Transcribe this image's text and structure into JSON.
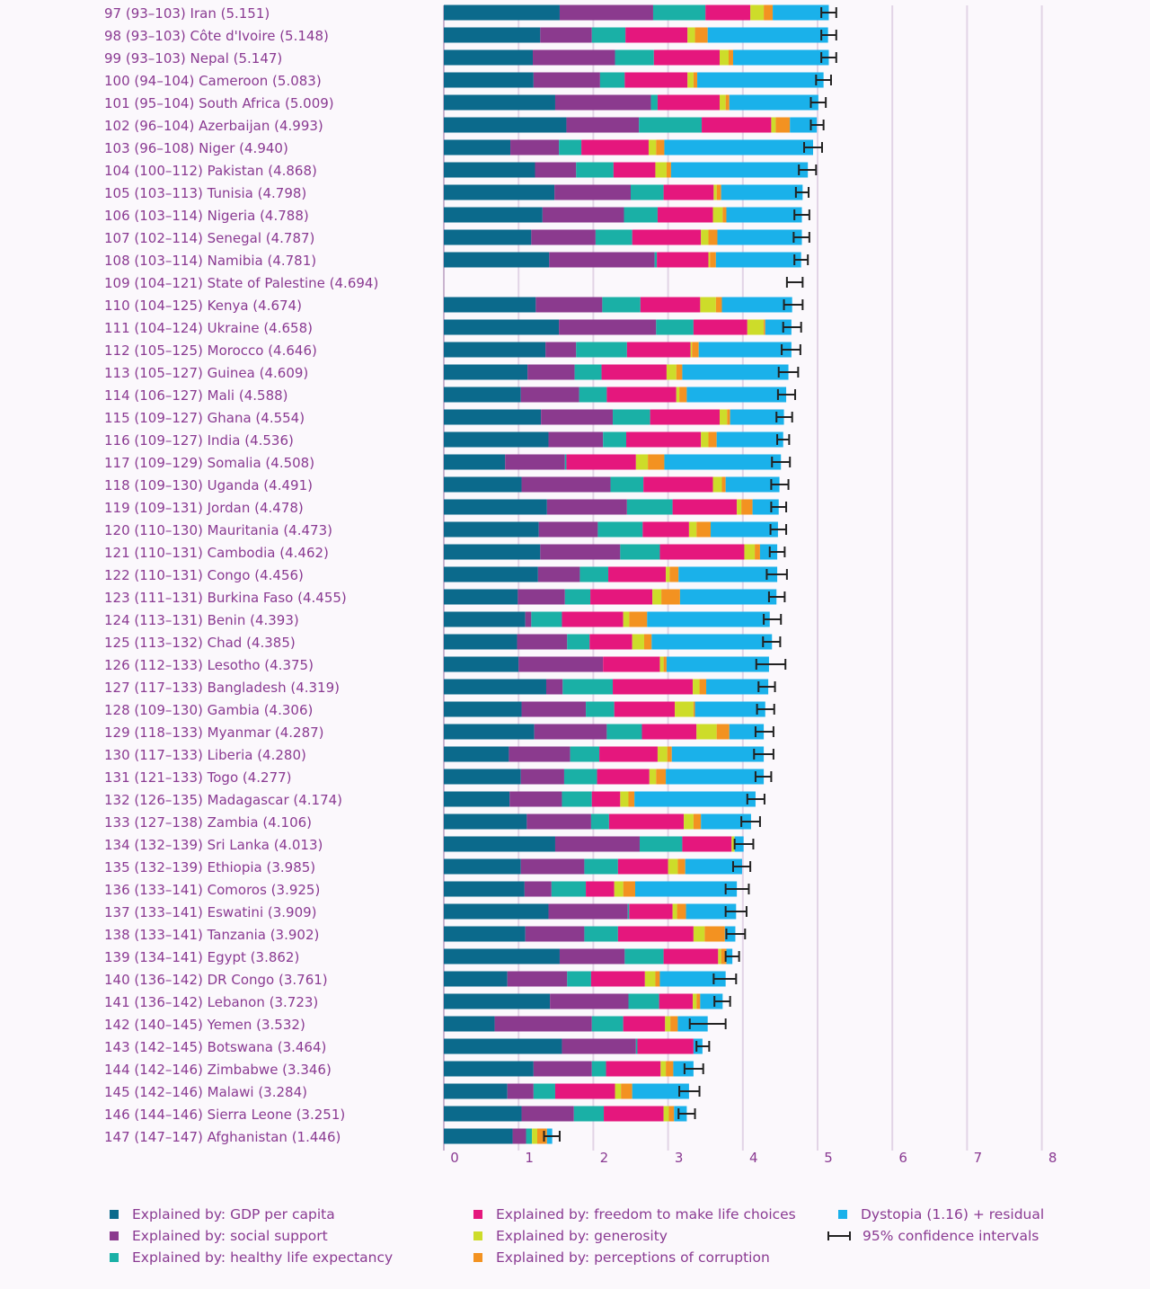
{
  "chart_data": {
    "type": "bar",
    "orientation": "horizontal",
    "stacked": true,
    "xlim": [
      0,
      8
    ],
    "x_ticks": [
      "0",
      "1",
      "2",
      "3",
      "4",
      "5",
      "6",
      "7",
      "8"
    ],
    "grid": true,
    "components": [
      {
        "key": "gdp",
        "name": "Explained by: GDP per capita",
        "color": "#0b6a8c"
      },
      {
        "key": "social",
        "name": "Explained by: social support",
        "color": "#8b3a8e"
      },
      {
        "key": "health",
        "name": "Explained by: healthy life expectancy",
        "color": "#1ab0a6"
      },
      {
        "key": "freedom",
        "name": "Explained by: freedom to make life choices",
        "color": "#e5177d"
      },
      {
        "key": "generosity",
        "name": "Explained by: generosity",
        "color": "#cddc2a"
      },
      {
        "key": "corruption",
        "name": "Explained by: perceptions of corruption",
        "color": "#f39221"
      },
      {
        "key": "dystopia",
        "name": "Dystopia (1.16) + residual",
        "color": "#1ab1ea"
      }
    ],
    "ci_legend": "95% confidence intervals",
    "rows": [
      {
        "label": "97  (93–103)  Iran (5.151)",
        "score": 5.151,
        "ci": [
          5.05,
          5.25
        ],
        "values": [
          1.55,
          1.25,
          0.7,
          0.6,
          0.18,
          0.12,
          0.75
        ]
      },
      {
        "label": "98  (93–103)  Côte d'Ivoire (5.148)",
        "score": 5.148,
        "ci": [
          5.05,
          5.25
        ],
        "values": [
          1.29,
          0.69,
          0.45,
          0.83,
          0.1,
          0.17,
          1.61
        ]
      },
      {
        "label": "99  (93–103)  Nepal (5.147)",
        "score": 5.147,
        "ci": [
          5.05,
          5.25
        ],
        "values": [
          1.19,
          1.1,
          0.52,
          0.88,
          0.12,
          0.06,
          1.28
        ]
      },
      {
        "label": "100  (94–104)  Cameroon (5.083)",
        "score": 5.083,
        "ci": [
          4.98,
          5.18
        ],
        "values": [
          1.2,
          0.89,
          0.33,
          0.84,
          0.08,
          0.05,
          1.69
        ]
      },
      {
        "label": "101  (95–104)  South Africa (5.009)",
        "score": 5.009,
        "ci": [
          4.91,
          5.11
        ],
        "values": [
          1.49,
          1.28,
          0.09,
          0.83,
          0.08,
          0.05,
          1.19
        ]
      },
      {
        "label": "102  (96–104)  Azerbaijan (4.993)",
        "score": 4.993,
        "ci": [
          4.91,
          5.08
        ],
        "values": [
          1.64,
          0.97,
          0.84,
          0.93,
          0.06,
          0.19,
          0.36
        ]
      },
      {
        "label": "103  (96–108)  Niger (4.940)",
        "score": 4.94,
        "ci": [
          4.82,
          5.06
        ],
        "values": [
          0.89,
          0.65,
          0.3,
          0.9,
          0.1,
          0.11,
          1.99
        ]
      },
      {
        "label": "104  (100–112)  Pakistan (4.868)",
        "score": 4.868,
        "ci": [
          4.75,
          4.98
        ],
        "values": [
          1.22,
          0.55,
          0.5,
          0.56,
          0.15,
          0.06,
          1.83
        ]
      },
      {
        "label": "105  (103–113)  Tunisia (4.798)",
        "score": 4.798,
        "ci": [
          4.71,
          4.88
        ],
        "values": [
          1.48,
          1.02,
          0.44,
          0.67,
          0.04,
          0.06,
          1.09
        ]
      },
      {
        "label": "106  (103–114)  Nigeria (4.788)",
        "score": 4.788,
        "ci": [
          4.69,
          4.89
        ],
        "values": [
          1.32,
          1.09,
          0.45,
          0.74,
          0.13,
          0.05,
          1.01
        ]
      },
      {
        "label": "107  (102–114)  Senegal (4.787)",
        "score": 4.787,
        "ci": [
          4.68,
          4.89
        ],
        "values": [
          1.17,
          0.86,
          0.49,
          0.92,
          0.1,
          0.12,
          1.13
        ]
      },
      {
        "label": "108  (103–114)  Namibia (4.781)",
        "score": 4.781,
        "ci": [
          4.69,
          4.87
        ],
        "values": [
          1.41,
          1.41,
          0.03,
          0.69,
          0.02,
          0.08,
          1.14
        ]
      },
      {
        "label": "109  (104–121)  State of Palestine (4.694)",
        "score": 4.694,
        "ci": [
          4.59,
          4.8
        ],
        "values": [
          0,
          0,
          0,
          0,
          0,
          0,
          0
        ]
      },
      {
        "label": "110  (104–125)  Kenya (4.674)",
        "score": 4.674,
        "ci": [
          4.55,
          4.8
        ],
        "values": [
          1.23,
          0.89,
          0.51,
          0.8,
          0.21,
          0.08,
          0.94
        ]
      },
      {
        "label": "111  (104–124)  Ukraine (4.658)",
        "score": 4.658,
        "ci": [
          4.54,
          4.78
        ],
        "values": [
          1.54,
          1.3,
          0.5,
          0.72,
          0.22,
          0.02,
          0.35
        ]
      },
      {
        "label": "112  (105–125)  Morocco (4.646)",
        "score": 4.646,
        "ci": [
          4.52,
          4.77
        ],
        "values": [
          1.36,
          0.41,
          0.68,
          0.85,
          0.02,
          0.09,
          1.24
        ]
      },
      {
        "label": "113  (105–127)  Guinea (4.609)",
        "score": 4.609,
        "ci": [
          4.48,
          4.74
        ],
        "values": [
          1.12,
          0.63,
          0.36,
          0.87,
          0.13,
          0.08,
          1.42
        ]
      },
      {
        "label": "114  (106–127)  Mali (4.588)",
        "score": 4.588,
        "ci": [
          4.47,
          4.7
        ],
        "values": [
          1.03,
          0.78,
          0.37,
          0.93,
          0.04,
          0.1,
          1.33
        ]
      },
      {
        "label": "115  (109–127)  Ghana (4.554)",
        "score": 4.554,
        "ci": [
          4.45,
          4.66
        ],
        "values": [
          1.3,
          0.96,
          0.5,
          0.93,
          0.1,
          0.04,
          0.72
        ]
      },
      {
        "label": "116  (109–127)  India (4.536)",
        "score": 4.536,
        "ci": [
          4.46,
          4.62
        ],
        "values": [
          1.4,
          0.73,
          0.31,
          1.0,
          0.1,
          0.11,
          0.89
        ]
      },
      {
        "label": "117  (109–129)  Somalia (4.508)",
        "score": 4.508,
        "ci": [
          4.39,
          4.63
        ],
        "values": [
          0.82,
          0.8,
          0.02,
          0.93,
          0.16,
          0.22,
          1.56
        ]
      },
      {
        "label": "118  (109–130)  Uganda (4.491)",
        "score": 4.491,
        "ci": [
          4.38,
          4.61
        ],
        "values": [
          1.04,
          1.19,
          0.44,
          0.93,
          0.12,
          0.05,
          0.72
        ]
      },
      {
        "label": "119  (109–131)  Jordan (4.478)",
        "score": 4.478,
        "ci": [
          4.38,
          4.58
        ],
        "values": [
          1.38,
          1.07,
          0.61,
          0.86,
          0.06,
          0.15,
          0.35
        ]
      },
      {
        "label": "120  (110–130)  Mauritania (4.473)",
        "score": 4.473,
        "ci": [
          4.37,
          4.58
        ],
        "values": [
          1.27,
          0.79,
          0.6,
          0.62,
          0.1,
          0.19,
          0.9
        ]
      },
      {
        "label": "121  (110–131)  Cambodia (4.462)",
        "score": 4.462,
        "ci": [
          4.36,
          4.56
        ],
        "values": [
          1.29,
          1.07,
          0.53,
          1.13,
          0.14,
          0.07,
          0.23
        ]
      },
      {
        "label": "122  (110–131)  Congo (4.456)",
        "score": 4.456,
        "ci": [
          4.32,
          4.59
        ],
        "values": [
          1.26,
          0.56,
          0.38,
          0.77,
          0.05,
          0.12,
          1.32
        ]
      },
      {
        "label": "123  (111–131)  Burkina Faso (4.455)",
        "score": 4.455,
        "ci": [
          4.35,
          4.56
        ],
        "values": [
          0.99,
          0.63,
          0.34,
          0.83,
          0.12,
          0.25,
          1.29
        ]
      },
      {
        "label": "124  (113–131)  Benin (4.393)",
        "score": 4.393,
        "ci": [
          4.28,
          4.51
        ],
        "values": [
          1.09,
          0.08,
          0.41,
          0.82,
          0.08,
          0.24,
          1.64
        ]
      },
      {
        "label": "125  (113–132)  Chad (4.385)",
        "score": 4.385,
        "ci": [
          4.27,
          4.5
        ],
        "values": [
          0.98,
          0.67,
          0.3,
          0.57,
          0.16,
          0.1,
          1.61
        ]
      },
      {
        "label": "126  (112–133)  Lesotho (4.375)",
        "score": 4.375,
        "ci": [
          4.18,
          4.57
        ],
        "values": [
          1.0,
          1.13,
          0.0,
          0.76,
          0.05,
          0.04,
          1.37
        ]
      },
      {
        "label": "127  (117–133)  Bangladesh (4.319)",
        "score": 4.319,
        "ci": [
          4.21,
          4.43
        ],
        "values": [
          1.37,
          0.22,
          0.67,
          1.07,
          0.09,
          0.09,
          0.83
        ]
      },
      {
        "label": "128  (109–130)  Gambia (4.306)",
        "score": 4.306,
        "ci": [
          4.19,
          4.42
        ],
        "values": [
          1.04,
          0.86,
          0.38,
          0.81,
          0.25,
          0.02,
          0.94
        ]
      },
      {
        "label": "129  (118–133)  Myanmar (4.287)",
        "score": 4.287,
        "ci": [
          4.17,
          4.41
        ],
        "values": [
          1.21,
          0.97,
          0.47,
          0.73,
          0.27,
          0.17,
          0.46
        ]
      },
      {
        "label": "130  (117–133)  Liberia (4.280)",
        "score": 4.28,
        "ci": [
          4.15,
          4.41
        ],
        "values": [
          0.87,
          0.82,
          0.39,
          0.78,
          0.13,
          0.06,
          1.23
        ]
      },
      {
        "label": "131  (121–133)  Togo (4.277)",
        "score": 4.277,
        "ci": [
          4.17,
          4.38
        ],
        "values": [
          1.03,
          0.58,
          0.44,
          0.7,
          0.09,
          0.13,
          1.31
        ]
      },
      {
        "label": "132  (126–135)  Madagascar (4.174)",
        "score": 4.174,
        "ci": [
          4.06,
          4.29
        ],
        "values": [
          0.88,
          0.7,
          0.4,
          0.38,
          0.11,
          0.08,
          1.62
        ]
      },
      {
        "label": "133  (127–138)  Zambia (4.106)",
        "score": 4.106,
        "ci": [
          3.98,
          4.23
        ],
        "values": [
          1.11,
          0.86,
          0.24,
          1.0,
          0.13,
          0.1,
          0.67
        ]
      },
      {
        "label": "134  (132–139)  Sri Lanka (4.013)",
        "score": 4.013,
        "ci": [
          3.89,
          4.14
        ],
        "values": [
          1.49,
          1.13,
          0.57,
          0.66,
          0.04,
          0.0,
          0.12
        ]
      },
      {
        "label": "135  (132–139)  Ethiopia (3.985)",
        "score": 3.985,
        "ci": [
          3.87,
          4.1
        ],
        "values": [
          1.03,
          0.85,
          0.45,
          0.67,
          0.13,
          0.1,
          0.76
        ]
      },
      {
        "label": "136  (133–141)  Comoros (3.925)",
        "score": 3.925,
        "ci": [
          3.77,
          4.08
        ],
        "values": [
          1.08,
          0.36,
          0.46,
          0.38,
          0.12,
          0.16,
          1.36
        ]
      },
      {
        "label": "137  (133–141)  Eswatini (3.909)",
        "score": 3.909,
        "ci": [
          3.77,
          4.05
        ],
        "values": [
          1.4,
          1.06,
          0.02,
          0.58,
          0.06,
          0.12,
          0.67
        ]
      },
      {
        "label": "138  (133–141)  Tanzania (3.902)",
        "score": 3.902,
        "ci": [
          3.78,
          4.03
        ],
        "values": [
          1.09,
          0.79,
          0.45,
          1.01,
          0.15,
          0.27,
          0.14
        ]
      },
      {
        "label": "139  (134–141)  Egypt (3.862)",
        "score": 3.862,
        "ci": [
          3.77,
          3.95
        ],
        "values": [
          1.55,
          0.87,
          0.52,
          0.73,
          0.04,
          0.07,
          0.08
        ]
      },
      {
        "label": "140  (136–142)  DR Congo (3.761)",
        "score": 3.761,
        "ci": [
          3.61,
          3.91
        ],
        "values": [
          0.85,
          0.8,
          0.32,
          0.72,
          0.14,
          0.06,
          0.88
        ]
      },
      {
        "label": "141  (136–142)  Lebanon (3.723)",
        "score": 3.723,
        "ci": [
          3.62,
          3.83
        ],
        "values": [
          1.42,
          1.05,
          0.41,
          0.45,
          0.05,
          0.05,
          0.3
        ]
      },
      {
        "label": "142  (140–145)  Yemen (3.532)",
        "score": 3.532,
        "ci": [
          3.29,
          3.77
        ],
        "values": [
          0.68,
          1.3,
          0.42,
          0.56,
          0.07,
          0.1,
          0.4
        ]
      },
      {
        "label": "143  (142–145)  Botswana (3.464)",
        "score": 3.464,
        "ci": [
          3.38,
          3.55
        ],
        "values": [
          1.58,
          0.99,
          0.02,
          0.75,
          0.0,
          0.0,
          0.12
        ]
      },
      {
        "label": "144  (142–146)  Zimbabwe (3.346)",
        "score": 3.346,
        "ci": [
          3.22,
          3.47
        ],
        "values": [
          1.2,
          0.78,
          0.19,
          0.73,
          0.07,
          0.1,
          0.27
        ]
      },
      {
        "label": "145  (142–146)  Malawi (3.284)",
        "score": 3.284,
        "ci": [
          3.15,
          3.42
        ],
        "values": [
          0.85,
          0.35,
          0.29,
          0.8,
          0.08,
          0.15,
          0.76
        ]
      },
      {
        "label": "146  (144–146)  Sierra Leone (3.251)",
        "score": 3.251,
        "ci": [
          3.14,
          3.36
        ],
        "values": [
          1.04,
          0.7,
          0.4,
          0.8,
          0.07,
          0.07,
          0.17
        ]
      },
      {
        "label": "147  (147–147)  Afghanistan (1.446)",
        "score": 1.446,
        "ci": [
          1.34,
          1.55
        ],
        "values": [
          0.92,
          0.18,
          0.08,
          0.0,
          0.07,
          0.13,
          0.07
        ]
      }
    ]
  }
}
